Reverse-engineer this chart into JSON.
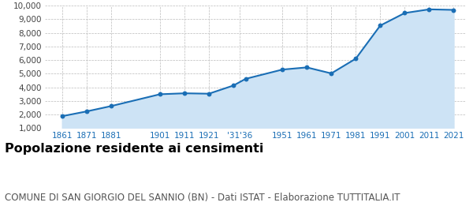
{
  "years": [
    1861,
    1871,
    1881,
    1901,
    1911,
    1921,
    1931,
    1936,
    1951,
    1961,
    1971,
    1981,
    1991,
    2001,
    2011,
    2021
  ],
  "population": [
    1880,
    2230,
    2620,
    3490,
    3560,
    3530,
    4130,
    4620,
    5300,
    5460,
    5020,
    6100,
    8530,
    9450,
    9720,
    9680
  ],
  "xtick_labels": [
    "1861",
    "1871",
    "1881",
    "1901",
    "1911",
    "1921",
    "'31'36",
    "1951",
    "1961",
    "1971",
    "1981",
    "1991",
    "2001",
    "2011",
    "2021"
  ],
  "xtick_positions": [
    1861,
    1871,
    1881,
    1901,
    1911,
    1921,
    1933.5,
    1951,
    1961,
    1971,
    1981,
    1991,
    2001,
    2011,
    2021
  ],
  "line_color": "#1a6eb5",
  "fill_color": "#cde3f5",
  "marker_color": "#1a6eb5",
  "bg_color": "#ffffff",
  "grid_color": "#bbbbbb",
  "ylim": [
    1000,
    10000
  ],
  "yticks": [
    1000,
    2000,
    3000,
    4000,
    5000,
    6000,
    7000,
    8000,
    9000,
    10000
  ],
  "xlim_min": 1854,
  "xlim_max": 2026,
  "title": "Popolazione residente ai censimenti",
  "subtitle": "COMUNE DI SAN GIORGIO DEL SANNIO (BN) - Dati ISTAT - Elaborazione TUTTITALIA.IT",
  "title_fontsize": 11.5,
  "subtitle_fontsize": 8.5
}
